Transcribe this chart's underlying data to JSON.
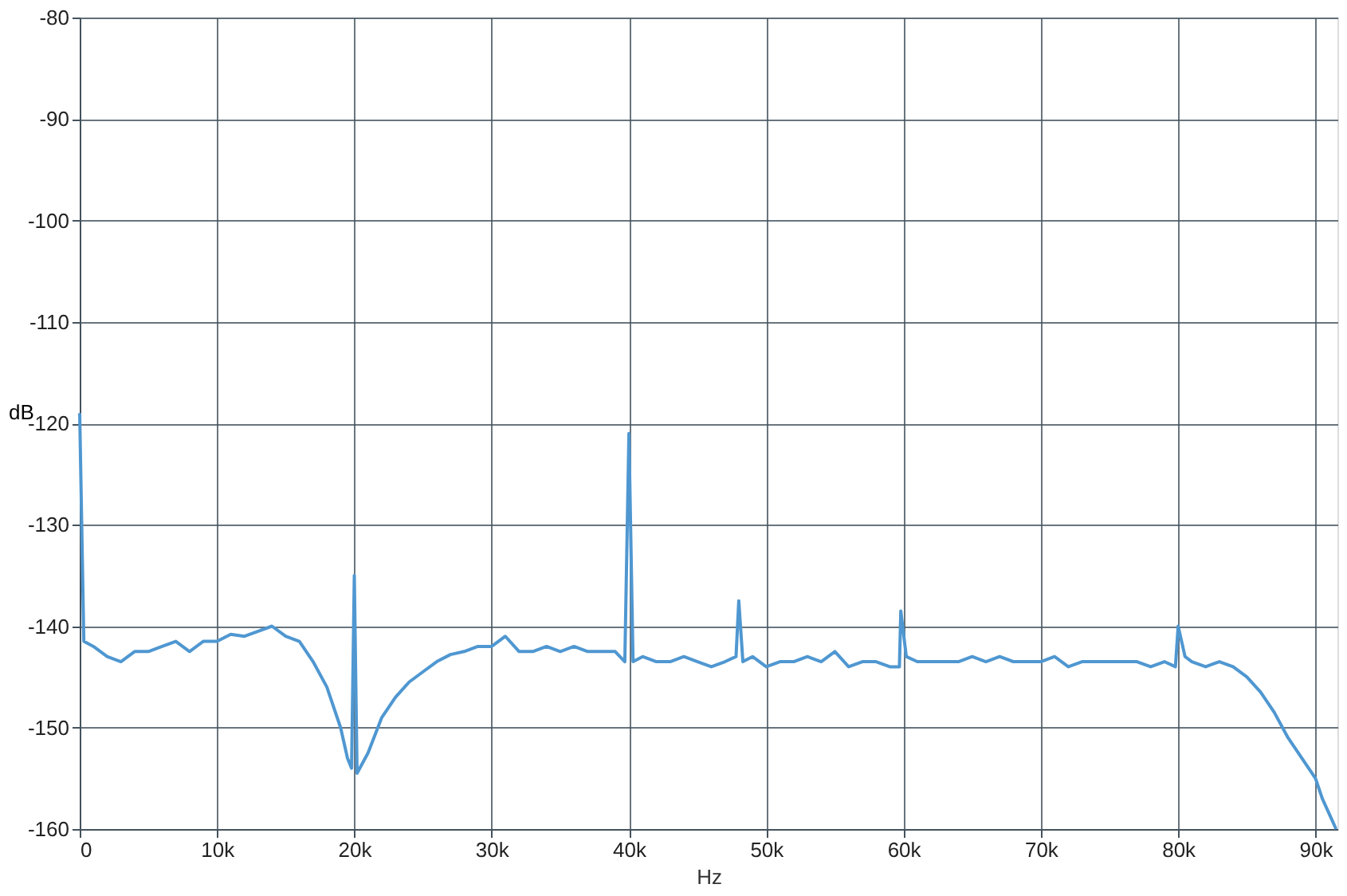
{
  "chart_data": {
    "type": "line",
    "xlabel": "Hz",
    "ylabel": "dB",
    "xlim": [
      0,
      91600
    ],
    "ylim": [
      -160,
      -80
    ],
    "xticks": [
      0,
      {
        "value": 10000,
        "label": "10k"
      },
      {
        "value": 20000,
        "label": "20k"
      },
      {
        "value": 30000,
        "label": "30k"
      },
      {
        "value": 40000,
        "label": "40k"
      },
      {
        "value": 50000,
        "label": "50k"
      },
      {
        "value": 60000,
        "label": "60k"
      },
      {
        "value": 70000,
        "label": "70k"
      },
      {
        "value": 80000,
        "label": "80k"
      },
      {
        "value": 90000,
        "label": "90k"
      }
    ],
    "yticks": [
      -160,
      -150,
      -140,
      -130,
      -120,
      -110,
      -100,
      -90,
      -80
    ],
    "grid": true,
    "legend": false,
    "marker": "none",
    "line_style": "solid",
    "series": [
      {
        "color": "#4f97d1",
        "x": [
          0,
          300,
          1000,
          2000,
          3000,
          4000,
          5000,
          6000,
          7000,
          8000,
          9000,
          10000,
          11000,
          12000,
          13000,
          14000,
          15000,
          16000,
          17000,
          18000,
          19000,
          19500,
          19800,
          20000,
          20200,
          21000,
          22000,
          23000,
          24000,
          25000,
          26000,
          27000,
          28000,
          29000,
          30000,
          31000,
          32000,
          33000,
          34000,
          35000,
          36000,
          37000,
          38000,
          39000,
          39700,
          40000,
          40300,
          41000,
          42000,
          43000,
          44000,
          45000,
          46000,
          47000,
          47800,
          48000,
          48300,
          49000,
          50000,
          51000,
          52000,
          53000,
          54000,
          55000,
          56000,
          57000,
          58000,
          59000,
          59700,
          59800,
          60200,
          61000,
          62000,
          63000,
          64000,
          65000,
          66000,
          67000,
          68000,
          69000,
          70000,
          71000,
          72000,
          73000,
          74000,
          75000,
          76000,
          77000,
          78000,
          79000,
          79800,
          80000,
          80500,
          81000,
          82000,
          83000,
          84000,
          85000,
          86000,
          87000,
          88000,
          89000,
          90000,
          90500,
          91000,
          91500
        ],
        "values": [
          -119,
          -141.5,
          -142,
          -143,
          -143.5,
          -142.5,
          -142.5,
          -142,
          -141.5,
          -142.5,
          -141.5,
          -141.5,
          -140.8,
          -141,
          -140.5,
          -140,
          -141,
          -141.5,
          -143.5,
          -146,
          -150,
          -153,
          -154,
          -135,
          -154.5,
          -152.5,
          -149,
          -147,
          -145.5,
          -144.5,
          -143.5,
          -142.8,
          -142.5,
          -142,
          -142,
          -141,
          -142.5,
          -142.5,
          -142,
          -142.5,
          -142,
          -142.5,
          -142.5,
          -142.5,
          -143.5,
          -121,
          -143.5,
          -143,
          -143.5,
          -143.5,
          -143,
          -143.5,
          -144,
          -143.5,
          -143,
          -137.5,
          -143.5,
          -143,
          -144,
          -143.5,
          -143.5,
          -143,
          -143.5,
          -142.5,
          -144,
          -143.5,
          -143.5,
          -144,
          -144,
          -138.5,
          -143,
          -143.5,
          -143.5,
          -143.5,
          -143.5,
          -143,
          -143.5,
          -143,
          -143.5,
          -143.5,
          -143.5,
          -143,
          -144,
          -143.5,
          -143.5,
          -143.5,
          -143.5,
          -143.5,
          -144,
          -143.5,
          -144,
          -140,
          -143,
          -143.5,
          -144,
          -143.5,
          -144,
          -145,
          -146.5,
          -148.5,
          -151,
          -153,
          -155,
          -157,
          -158.5,
          -160
        ]
      }
    ]
  }
}
